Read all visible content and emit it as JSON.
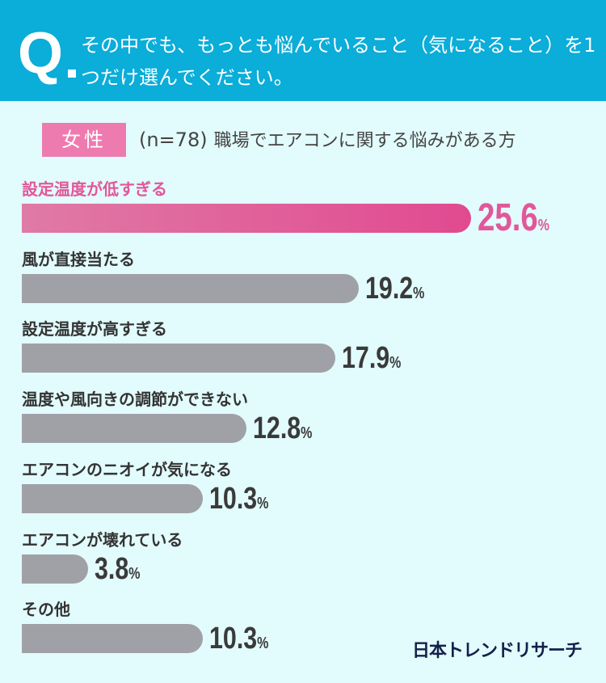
{
  "header": {
    "q_mark": "Q",
    "question": "その中でも、もっとも悩んでいること（気になること）を1つだけ選んでください。"
  },
  "subheader": {
    "badge": "女性",
    "n": "(n=78)",
    "description": "職場でエアコンに関する悩みがある方"
  },
  "chart_data": {
    "type": "bar",
    "orientation": "horizontal",
    "unit": "%",
    "categories": [
      "設定温度が低すぎる",
      "風が直接当たる",
      "設定温度が高すぎる",
      "温度や風向きの調節ができない",
      "エアコンのニオイが気になる",
      "エアコンが壊れている",
      "その他"
    ],
    "values": [
      25.6,
      19.2,
      17.9,
      12.8,
      10.3,
      3.8,
      10.3
    ],
    "value_labels": [
      "25.6",
      "19.2",
      "17.9",
      "12.8",
      "10.3",
      "3.8",
      "10.3"
    ],
    "highlight_index": 0,
    "colors": {
      "highlight": "#e2579a",
      "bar": "#a0a1a6"
    }
  },
  "logo": "日本トレンドリサーチ",
  "colors": {
    "header_bg": "#0badd9",
    "page_bg": "#e2fbfc",
    "badge_bg": "#ee7bb0"
  }
}
